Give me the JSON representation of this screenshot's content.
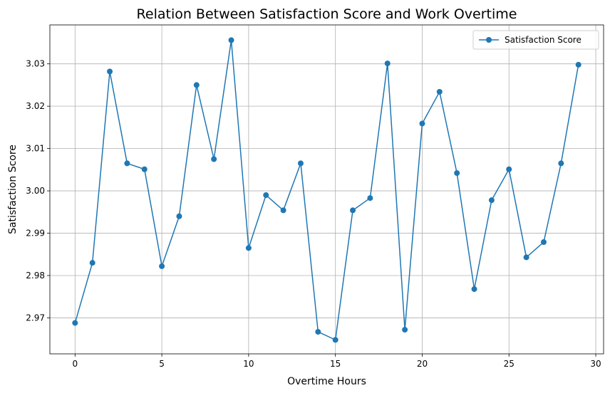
{
  "chart_data": {
    "type": "line",
    "title": "Relation Between Satisfaction Score and Work Overtime",
    "xlabel": "Overtime Hours",
    "ylabel": "Satisfaction Score",
    "xlim": [
      -1.45,
      30.45
    ],
    "ylim": [
      2.9615,
      3.0392
    ],
    "xticks": [
      0,
      5,
      10,
      15,
      20,
      25,
      30
    ],
    "yticks": [
      2.97,
      2.98,
      2.99,
      3.0,
      3.01,
      3.02,
      3.03
    ],
    "ytick_labels": [
      "2.97",
      "2.98",
      "2.99",
      "3.00",
      "3.01",
      "3.02",
      "3.03"
    ],
    "grid": true,
    "legend_position": "top-right",
    "series": [
      {
        "name": "Satisfaction Score",
        "color": "#1f77b4",
        "marker": "circle",
        "x": [
          0,
          1,
          2,
          3,
          4,
          5,
          6,
          7,
          8,
          9,
          10,
          11,
          12,
          13,
          14,
          15,
          16,
          17,
          18,
          19,
          20,
          21,
          22,
          23,
          24,
          25,
          26,
          27,
          28,
          29
        ],
        "values": [
          2.9688,
          2.983,
          3.0282,
          3.0065,
          3.0051,
          2.9822,
          2.994,
          3.025,
          3.0075,
          3.0356,
          2.9865,
          2.999,
          2.9954,
          3.0065,
          2.9667,
          2.9648,
          2.9954,
          2.9983,
          3.0301,
          2.9672,
          3.0159,
          3.0234,
          3.0042,
          2.9768,
          2.9978,
          3.0051,
          2.9843,
          2.9879,
          3.0065,
          3.0298
        ]
      }
    ]
  }
}
